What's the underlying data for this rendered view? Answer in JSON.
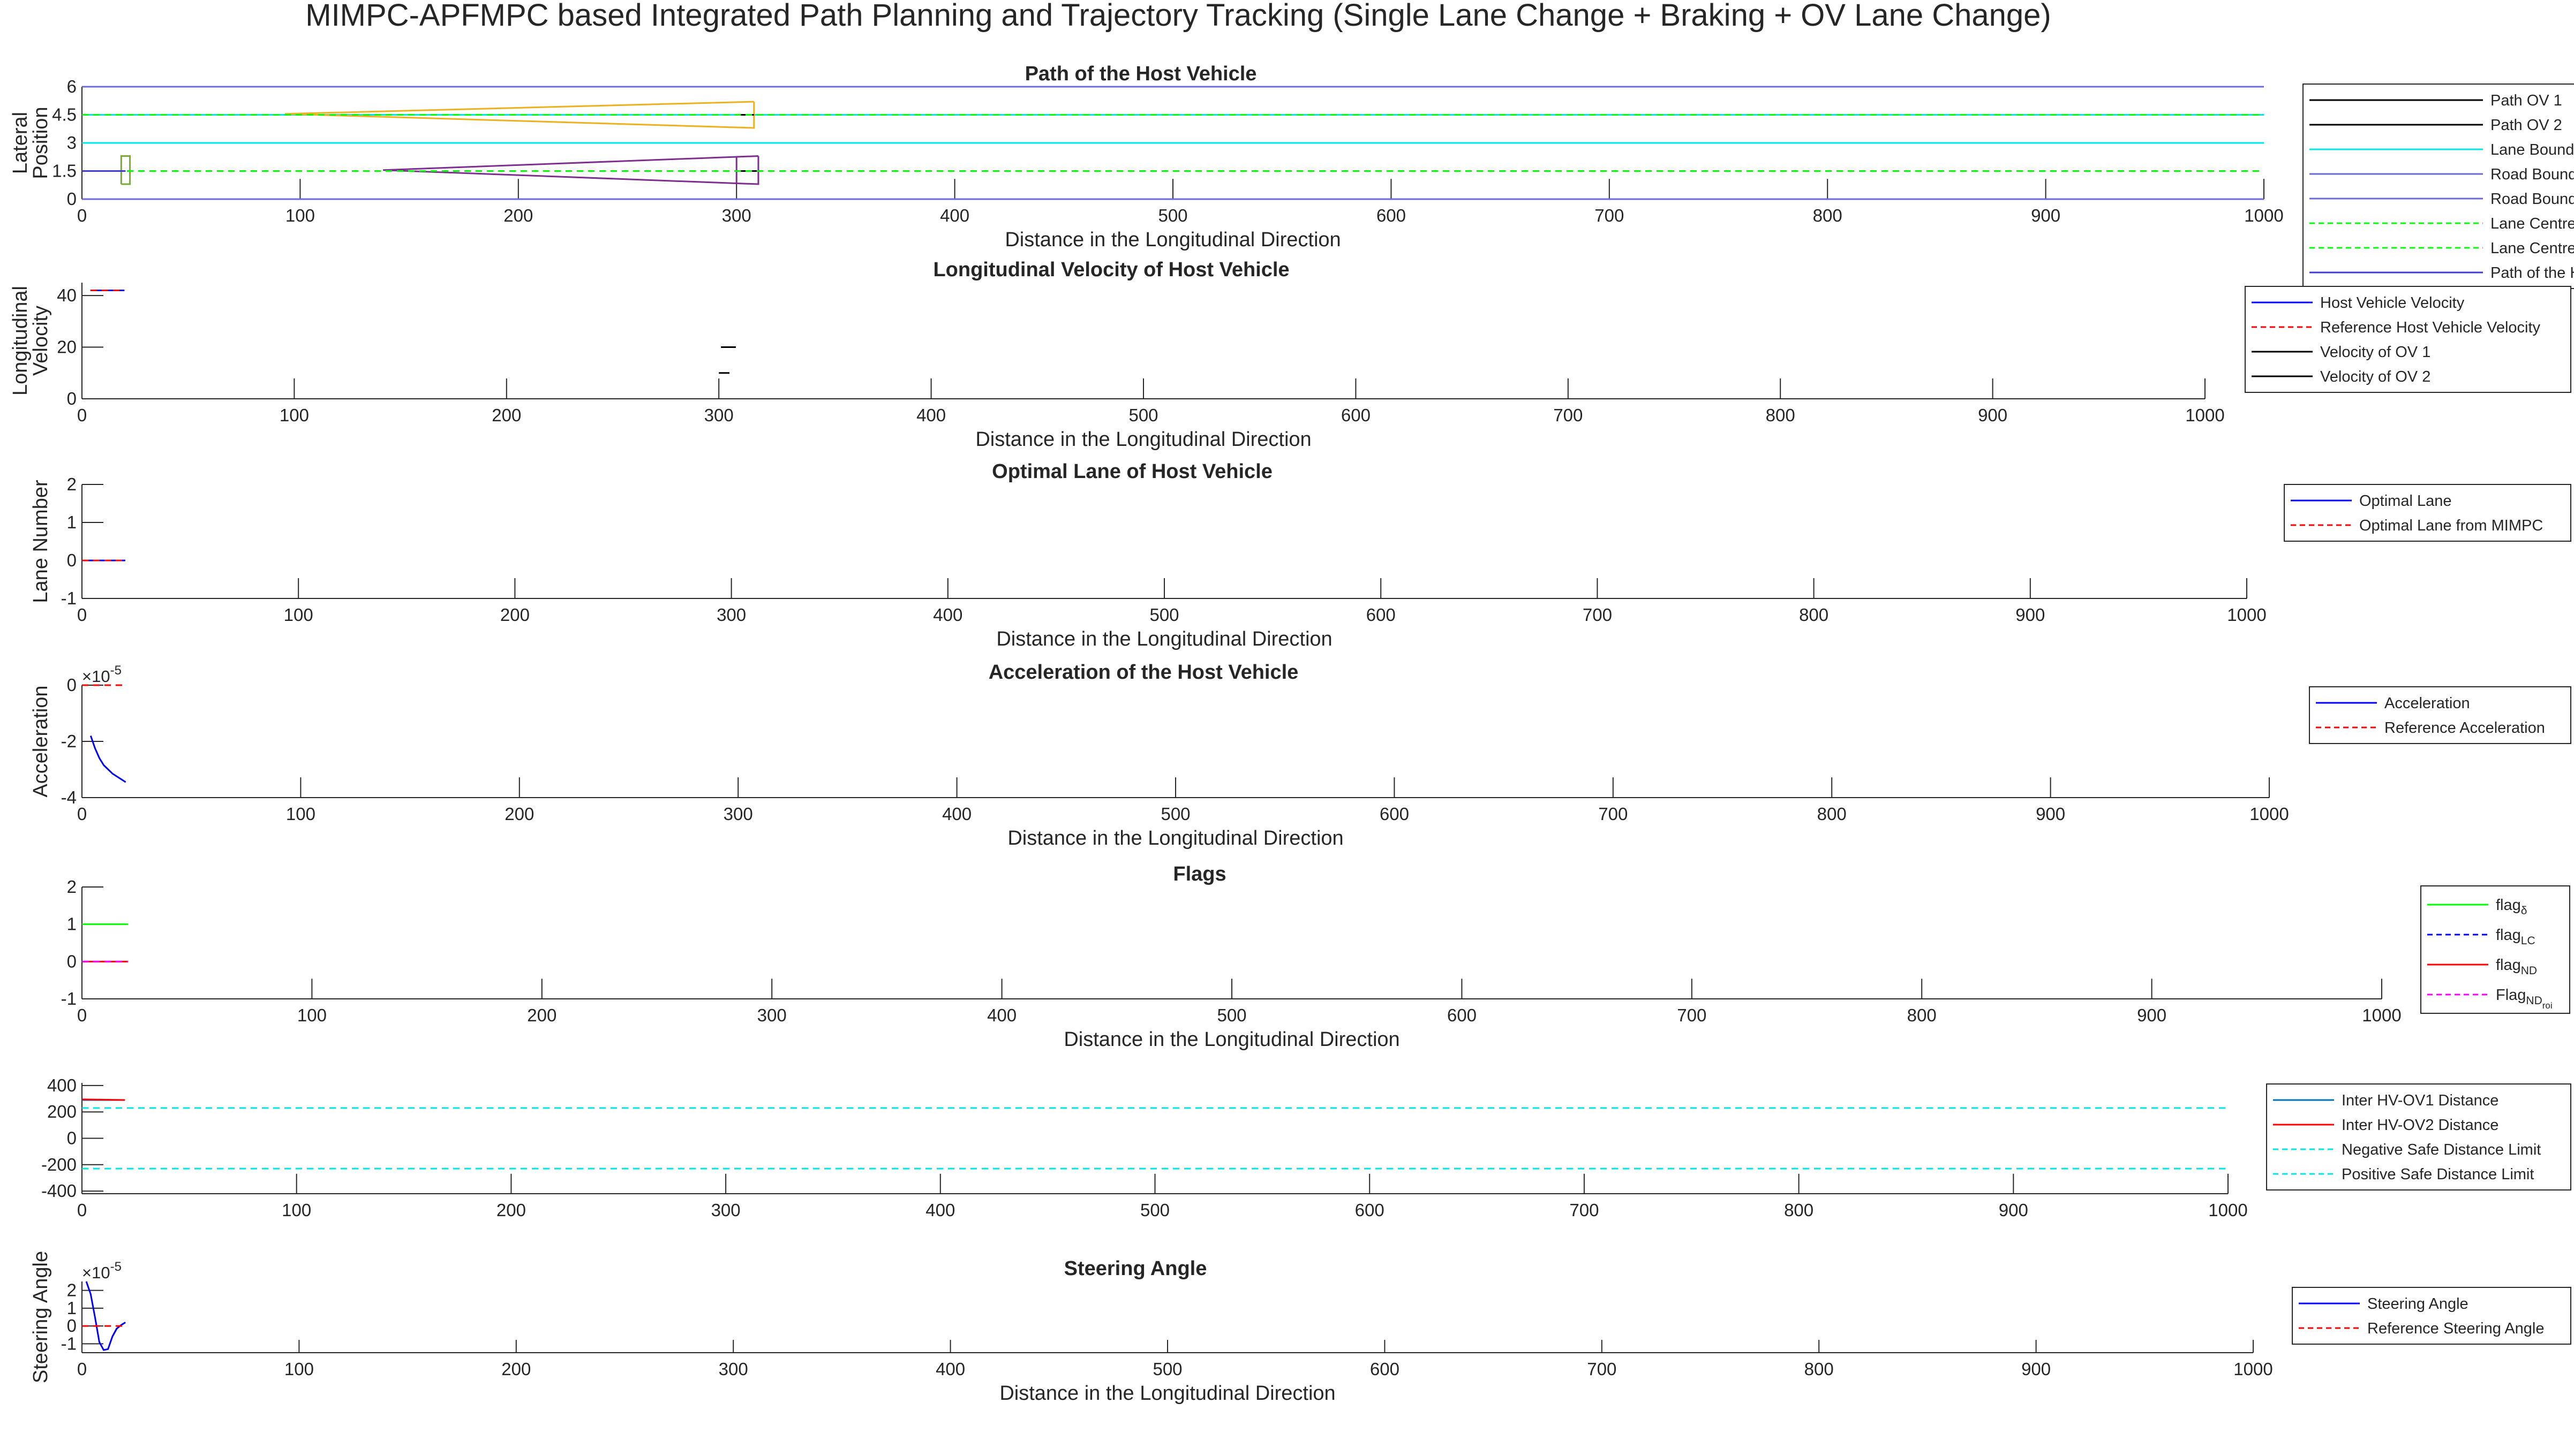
{
  "figure": {
    "title": "MIMPC-APFMPC based Integrated Path Planning and Trajectory Tracking (Single Lane Change + Braking + OV Lane Change)"
  },
  "colors": {
    "axis": "#262626",
    "host": "#0000ff",
    "reference": "#ff0000",
    "ov": "#000000",
    "lane_boundary": "#00e5e5",
    "road_boundary": "#6b6bd6",
    "lane_centre": "#00ff00",
    "path_host": "#3d3dd0",
    "ov1_box": "#7e2f8e",
    "ov2_box": "#edb120",
    "host_box": "#77ac30",
    "flag_delta": "#00ff00",
    "flag_lc": "#0000ff",
    "flag_nd": "#ff0000",
    "flag_nd_roi": "#ff00ff",
    "hv_ov1": "#0072bd",
    "hv_ov2": "#ff0000",
    "safe_limit": "#00e5e5",
    "purple": "#7e2f8e"
  },
  "chart_data": [
    {
      "id": "path",
      "type": "line",
      "title": "Path of the Host Vehicle",
      "xlabel": "Distance in the Longitudinal Direction",
      "ylabel": [
        "Lateral",
        "Position"
      ],
      "xlim": [
        0,
        1000
      ],
      "ylim": [
        0,
        6
      ],
      "xticks": [
        0,
        100,
        200,
        300,
        400,
        500,
        600,
        700,
        800,
        900,
        1000
      ],
      "yticks": [
        0,
        1.5,
        3,
        4.5,
        6
      ],
      "ytick_labels": [
        "0",
        "1.5",
        "3",
        "4.5",
        "6"
      ],
      "series": [
        {
          "name": "Path OV 1",
          "color": "#000000",
          "dash": "solid",
          "x": [
            300,
            310
          ],
          "y": [
            1.5,
            1.5
          ]
        },
        {
          "name": "Path OV 2",
          "color": "#000000",
          "dash": "solid",
          "x": [
            300,
            308
          ],
          "y": [
            4.5,
            4.5
          ]
        },
        {
          "name": "Lane Boundaries",
          "color": "#00e5e5",
          "dash": "solid",
          "x": [
            0,
            1000
          ],
          "y": [
            3,
            3
          ]
        },
        {
          "name": "Road Boundaries",
          "color": "#6b6bd6",
          "dash": "solid",
          "x": [
            0,
            1000
          ],
          "y": [
            0,
            0
          ]
        },
        {
          "name": "Road Boundaries",
          "color": "#6b6bd6",
          "dash": "solid",
          "x": [
            0,
            1000
          ],
          "y": [
            6,
            6
          ]
        },
        {
          "name": "Lane Centres",
          "color": "#00ff00",
          "dash": "dashed",
          "x": [
            0,
            1000
          ],
          "y": [
            1.5,
            1.5
          ]
        },
        {
          "name": "Lane Centres",
          "color": "#00ff00",
          "dash": "dashed",
          "x": [
            0,
            1000
          ],
          "y": [
            4.5,
            4.5
          ]
        },
        {
          "name": "Path of the Host Vehicle",
          "color": "#3d3dd0",
          "dash": "solid",
          "x": [
            0,
            20
          ],
          "y": [
            1.5,
            1.5
          ]
        }
      ],
      "extras": [
        {
          "color": "#00e5e5",
          "dash": "solid",
          "x": [
            0,
            1000
          ],
          "y": [
            4.5,
            4.5
          ]
        },
        {
          "color": "#7e2f8e",
          "dash": "solid",
          "x": [
            310,
            138,
            310,
            310
          ],
          "y": [
            2.3,
            1.55,
            0.8,
            2.3
          ]
        },
        {
          "color": "#7e2f8e",
          "dash": "solid",
          "x": [
            300,
            300
          ],
          "y": [
            0.8,
            2.3
          ]
        },
        {
          "color": "#edb120",
          "dash": "solid",
          "x": [
            308,
            93,
            308,
            308
          ],
          "y": [
            5.2,
            4.55,
            3.8,
            5.2
          ]
        },
        {
          "color": "#77ac30",
          "dash": "solid",
          "x": [
            18,
            22,
            22,
            18,
            18
          ],
          "y": [
            0.8,
            0.8,
            2.3,
            2.3,
            0.8
          ]
        }
      ],
      "legend": {
        "position": "right",
        "entries": [
          {
            "label": "Path OV 1",
            "color": "#000000",
            "dash": "solid"
          },
          {
            "label": "Path OV 2",
            "color": "#000000",
            "dash": "solid"
          },
          {
            "label": "Lane Boundaries",
            "color": "#00e5e5",
            "dash": "solid"
          },
          {
            "label": "Road Boundaries",
            "color": "#6b6bd6",
            "dash": "solid"
          },
          {
            "label": "Road Boundaries",
            "color": "#6b6bd6",
            "dash": "solid"
          },
          {
            "label": "Lane Centres",
            "color": "#00ff00",
            "dash": "dashed"
          },
          {
            "label": "Lane Centres",
            "color": "#00ff00",
            "dash": "dashed"
          },
          {
            "label": "Path of the Host Vehicle",
            "color": "#3d3dd0",
            "dash": "solid"
          }
        ]
      }
    },
    {
      "id": "velocity",
      "type": "line",
      "title": "Longitudinal Velocity of Host Vehicle",
      "xlabel": "Distance in the Longitudinal Direction",
      "ylabel": [
        "Longitudinal",
        "Velocity"
      ],
      "xlim": [
        0,
        1000
      ],
      "ylim": [
        0,
        45
      ],
      "xticks": [
        0,
        100,
        200,
        300,
        400,
        500,
        600,
        700,
        800,
        900,
        1000
      ],
      "yticks": [
        0,
        20,
        40
      ],
      "ytick_labels": [
        "0",
        "20",
        "40"
      ],
      "series": [
        {
          "name": "Host Vehicle Velocity",
          "color": "#0000ff",
          "dash": "solid",
          "x": [
            4,
            20
          ],
          "y": [
            42,
            42
          ]
        },
        {
          "name": "Reference Host Vehicle Velocity",
          "color": "#ff0000",
          "dash": "dashed",
          "x": [
            4,
            20
          ],
          "y": [
            42,
            42
          ]
        },
        {
          "name": "Velocity of OV 1",
          "color": "#000000",
          "dash": "solid",
          "x": [
            300,
            305
          ],
          "y": [
            10,
            10
          ]
        },
        {
          "name": "Velocity of OV 2",
          "color": "#000000",
          "dash": "solid",
          "x": [
            301,
            308
          ],
          "y": [
            20,
            20
          ]
        }
      ],
      "extras": [
        {
          "color": "#7e2f8e",
          "dash": "solid",
          "x": [
            4,
            20
          ],
          "y": [
            42,
            42
          ]
        }
      ],
      "legend": {
        "position": "right",
        "entries": [
          {
            "label": "Host Vehicle Velocity",
            "color": "#0000ff",
            "dash": "solid"
          },
          {
            "label": "Reference Host Vehicle Velocity",
            "color": "#ff0000",
            "dash": "dashed"
          },
          {
            "label": "Velocity of OV 1",
            "color": "#000000",
            "dash": "solid"
          },
          {
            "label": "Velocity of OV 2",
            "color": "#000000",
            "dash": "solid"
          }
        ]
      }
    },
    {
      "id": "lane",
      "type": "line",
      "title": "Optimal Lane of Host Vehicle",
      "xlabel": "Distance in the Longitudinal Direction",
      "ylabel": [
        "Lane Number"
      ],
      "xlim": [
        0,
        1000
      ],
      "ylim": [
        -1,
        2
      ],
      "xticks": [
        0,
        100,
        200,
        300,
        400,
        500,
        600,
        700,
        800,
        900,
        1000
      ],
      "yticks": [
        -1,
        0,
        1,
        2
      ],
      "ytick_labels": [
        "-1",
        "0",
        "1",
        "2"
      ],
      "series": [
        {
          "name": "Optimal Lane",
          "color": "#0000ff",
          "dash": "solid",
          "x": [
            0,
            20
          ],
          "y": [
            0,
            0
          ]
        },
        {
          "name": "Optimal Lane from MIMPC",
          "color": "#ff0000",
          "dash": "dashed",
          "x": [
            0,
            20
          ],
          "y": [
            0,
            0
          ]
        }
      ],
      "extras": [
        {
          "color": "#7e2f8e",
          "dash": "solid",
          "x": [
            0,
            20
          ],
          "y": [
            0,
            0
          ]
        }
      ],
      "legend": {
        "position": "right",
        "entries": [
          {
            "label": "Optimal Lane",
            "color": "#0000ff",
            "dash": "solid"
          },
          {
            "label": "Optimal Lane from MIMPC",
            "color": "#ff0000",
            "dash": "dashed"
          }
        ]
      }
    },
    {
      "id": "accel",
      "type": "line",
      "title": "Acceleration of the Host Vehicle",
      "xlabel": "Distance in the Longitudinal Direction",
      "ylabel": [
        "Acceleration"
      ],
      "exponent": "-5",
      "xlim": [
        0,
        1000
      ],
      "ylim": [
        -4,
        0
      ],
      "xticks": [
        0,
        100,
        200,
        300,
        400,
        500,
        600,
        700,
        800,
        900,
        1000
      ],
      "yticks": [
        -4,
        -2,
        0
      ],
      "ytick_labels": [
        "-4",
        "-2",
        "0"
      ],
      "series": [
        {
          "name": "Acceleration",
          "color": "#0000ff",
          "dash": "solid",
          "x": [
            4,
            6,
            8,
            10,
            12,
            14,
            16,
            18,
            20
          ],
          "y": [
            -1.8,
            -2.25,
            -2.6,
            -2.85,
            -3.0,
            -3.15,
            -3.25,
            -3.35,
            -3.45
          ]
        },
        {
          "name": "Reference Acceleration",
          "color": "#ff0000",
          "dash": "dashed",
          "x": [
            0,
            20
          ],
          "y": [
            0,
            0
          ]
        }
      ],
      "extras": [],
      "legend": {
        "position": "right",
        "entries": [
          {
            "label": "Acceleration",
            "color": "#0000ff",
            "dash": "solid"
          },
          {
            "label": "Reference Acceleration",
            "color": "#ff0000",
            "dash": "dashed"
          }
        ]
      }
    },
    {
      "id": "flags",
      "type": "line",
      "title": "Flags",
      "xlabel": "Distance in the Longitudinal Direction",
      "ylabel": [],
      "xlim": [
        0,
        1000
      ],
      "ylim": [
        -1,
        2
      ],
      "xticks": [
        0,
        100,
        200,
        300,
        400,
        500,
        600,
        700,
        800,
        900,
        1000
      ],
      "yticks": [
        -1,
        0,
        1,
        2
      ],
      "ytick_labels": [
        "-1",
        "0",
        "1",
        "2"
      ],
      "series": [
        {
          "name": "flagδ",
          "color": "#00ff00",
          "dash": "solid",
          "x": [
            0,
            20
          ],
          "y": [
            1,
            1
          ]
        },
        {
          "name": "flagLC",
          "color": "#0000ff",
          "dash": "dashed",
          "x": [
            0,
            20
          ],
          "y": [
            0,
            0
          ]
        },
        {
          "name": "flagND",
          "color": "#ff0000",
          "dash": "solid",
          "x": [
            0,
            20
          ],
          "y": [
            0,
            0
          ]
        },
        {
          "name": "FlagNDroi",
          "color": "#ff00ff",
          "dash": "dashed",
          "x": [
            0,
            20
          ],
          "y": [
            0,
            0
          ]
        }
      ],
      "extras": [],
      "legend": {
        "position": "right",
        "entries": [
          {
            "label": "flag",
            "sub": "δ",
            "color": "#00ff00",
            "dash": "solid"
          },
          {
            "label": "flag",
            "sub": "LC",
            "color": "#0000ff",
            "dash": "dashed"
          },
          {
            "label": "flag",
            "sub": "ND",
            "color": "#ff0000",
            "dash": "solid"
          },
          {
            "label": "Flag",
            "sub": "ND",
            "sub2": "roi",
            "color": "#ff00ff",
            "dash": "dashed"
          }
        ]
      }
    },
    {
      "id": "distance",
      "type": "line",
      "title": "",
      "xlabel": "",
      "ylabel": [],
      "xlim": [
        0,
        1000
      ],
      "ylim": [
        -420,
        420
      ],
      "xticks": [
        0,
        100,
        200,
        300,
        400,
        500,
        600,
        700,
        800,
        900,
        1000
      ],
      "yticks": [
        -400,
        -200,
        0,
        200,
        400
      ],
      "ytick_labels": [
        "-400",
        "-200",
        "0",
        "200",
        "400"
      ],
      "series": [
        {
          "name": "Inter HV-OV1 Distance",
          "color": "#0072bd",
          "dash": "solid",
          "x": [
            0,
            20
          ],
          "y": [
            290,
            290
          ]
        },
        {
          "name": "Inter HV-OV2 Distance",
          "color": "#ff0000",
          "dash": "solid",
          "x": [
            0,
            20
          ],
          "y": [
            295,
            290
          ]
        },
        {
          "name": "Negative Safe Distance Limit",
          "color": "#00e5e5",
          "dash": "dashed",
          "x": [
            0,
            1000
          ],
          "y": [
            -230,
            -230
          ]
        },
        {
          "name": "Positive Safe Distance Limit",
          "color": "#00e5e5",
          "dash": "dashed",
          "x": [
            0,
            1000
          ],
          "y": [
            230,
            230
          ]
        }
      ],
      "extras": [],
      "legend": {
        "position": "right",
        "entries": [
          {
            "label": "Inter HV-OV1 Distance",
            "color": "#0072bd",
            "dash": "solid"
          },
          {
            "label": "Inter HV-OV2 Distance",
            "color": "#ff0000",
            "dash": "solid"
          },
          {
            "label": "Negative Safe Distance Limit",
            "color": "#00e5e5",
            "dash": "dashed"
          },
          {
            "label": "Positive Safe Distance Limit",
            "color": "#00e5e5",
            "dash": "dashed"
          }
        ]
      }
    },
    {
      "id": "steering",
      "type": "line",
      "title": "Steering Angle",
      "xlabel": "Distance in the Longitudinal Direction",
      "ylabel": [
        "Steering Angle"
      ],
      "exponent": "-5",
      "xlim": [
        0,
        1000
      ],
      "ylim": [
        -1.5,
        2.5
      ],
      "xticks": [
        0,
        100,
        200,
        300,
        400,
        500,
        600,
        700,
        800,
        900,
        1000
      ],
      "yticks": [
        -1,
        0,
        1,
        2
      ],
      "ytick_labels": [
        "-1",
        "0",
        "1",
        "2"
      ],
      "series": [
        {
          "name": "Steering Angle",
          "color": "#0000ff",
          "dash": "solid",
          "x": [
            2,
            4,
            6,
            8,
            10,
            12,
            14,
            16,
            18,
            20
          ],
          "y": [
            2.5,
            1.8,
            0.5,
            -0.9,
            -1.35,
            -1.3,
            -0.6,
            -0.15,
            0.05,
            0.2
          ]
        },
        {
          "name": "Reference Steering Angle",
          "color": "#ff0000",
          "dash": "dashed",
          "x": [
            0,
            20
          ],
          "y": [
            0,
            0
          ]
        }
      ],
      "extras": [
        {
          "color": "#7e2f8e",
          "dash": "solid",
          "x": [
            14,
            16,
            18,
            20
          ],
          "y": [
            -0.6,
            -0.15,
            0.05,
            0.2
          ]
        }
      ],
      "legend": {
        "position": "right",
        "entries": [
          {
            "label": "Steering Angle",
            "color": "#0000ff",
            "dash": "solid"
          },
          {
            "label": "Reference Steering Angle",
            "color": "#ff0000",
            "dash": "dashed"
          }
        ]
      }
    }
  ]
}
